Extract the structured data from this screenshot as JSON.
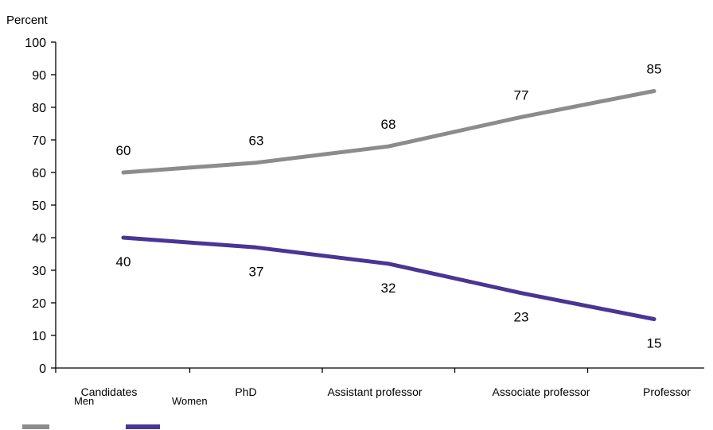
{
  "chart_data": {
    "type": "line",
    "ylabel": "Percent",
    "ylim": [
      0,
      100
    ],
    "yticks": [
      0,
      10,
      20,
      30,
      40,
      50,
      60,
      70,
      80,
      90,
      100
    ],
    "categories": [
      "Candidates",
      "PhD",
      "Assistant professor",
      "Associate professor",
      "Professor"
    ],
    "series": [
      {
        "name": "Men",
        "values": [
          60,
          63,
          68,
          77,
          85
        ],
        "color": "#8c8c8c"
      },
      {
        "name": "Women",
        "values": [
          40,
          37,
          32,
          23,
          15
        ],
        "color": "#4a3594"
      }
    ],
    "legend": "bottom-left",
    "grid": false
  }
}
